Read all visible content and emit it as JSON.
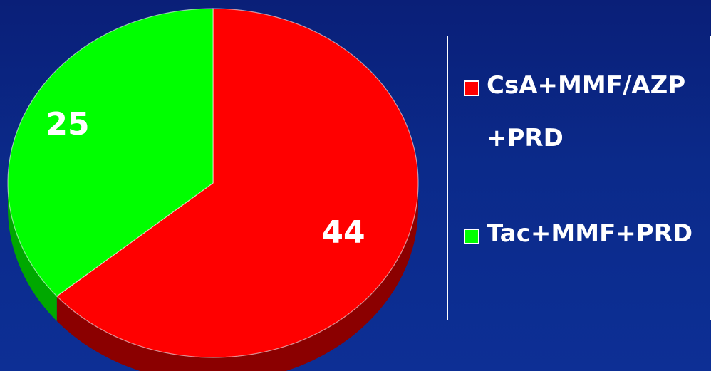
{
  "chart_data": {
    "type": "pie",
    "title": "",
    "slices": [
      {
        "label": "CsA+MMF/AZP +PRD",
        "value": 44,
        "display": "44",
        "color": "#ff0000",
        "side_color": "#8b0000"
      },
      {
        "label": "Tac+MMF+PRD",
        "value": 25,
        "display": "25",
        "color": "#00ff00",
        "side_color": "#00a800"
      }
    ],
    "legend_placement": "right",
    "start_angle": "12 o'clock, clockwise"
  },
  "legend": {
    "items": [
      {
        "text": "CsA+MMF/AZP\n+PRD",
        "color": "#ff0000"
      },
      {
        "text": "Tac+MMF+PRD",
        "color": "#00ff00"
      }
    ]
  }
}
